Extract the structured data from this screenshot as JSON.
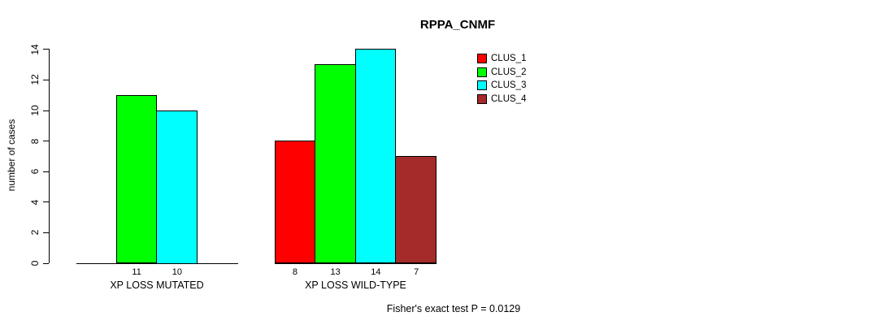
{
  "chart_data": {
    "type": "bar",
    "title": "RPPA_CNMF",
    "ylabel": "number of cases",
    "xlabel": "",
    "ylim": [
      0,
      14
    ],
    "yticks": [
      0,
      2,
      4,
      6,
      8,
      10,
      12,
      14
    ],
    "grid": false,
    "legend_position": "top-right",
    "series": [
      {
        "name": "CLUS_1",
        "color": "#FF0000"
      },
      {
        "name": "CLUS_2",
        "color": "#00FF00"
      },
      {
        "name": "CLUS_3",
        "color": "#00FFFF"
      },
      {
        "name": "CLUS_4",
        "color": "#A52A2A"
      }
    ],
    "groups": [
      {
        "label": "XP LOSS MUTATED",
        "slots": [
          null,
          {
            "series": "CLUS_2",
            "value": 11
          },
          {
            "series": "CLUS_3",
            "value": 10
          },
          null
        ]
      },
      {
        "label": "XP LOSS WILD-TYPE",
        "slots": [
          {
            "series": "CLUS_1",
            "value": 8
          },
          {
            "series": "CLUS_2",
            "value": 13
          },
          {
            "series": "CLUS_3",
            "value": 14
          },
          {
            "series": "CLUS_4",
            "value": 7
          }
        ]
      }
    ],
    "annotation": "Fisher's exact test P = 0.0129"
  },
  "colors": {
    "axis": "#000000",
    "bar_border": "#000000",
    "background": "#FFFFFF",
    "text": "#000000"
  }
}
